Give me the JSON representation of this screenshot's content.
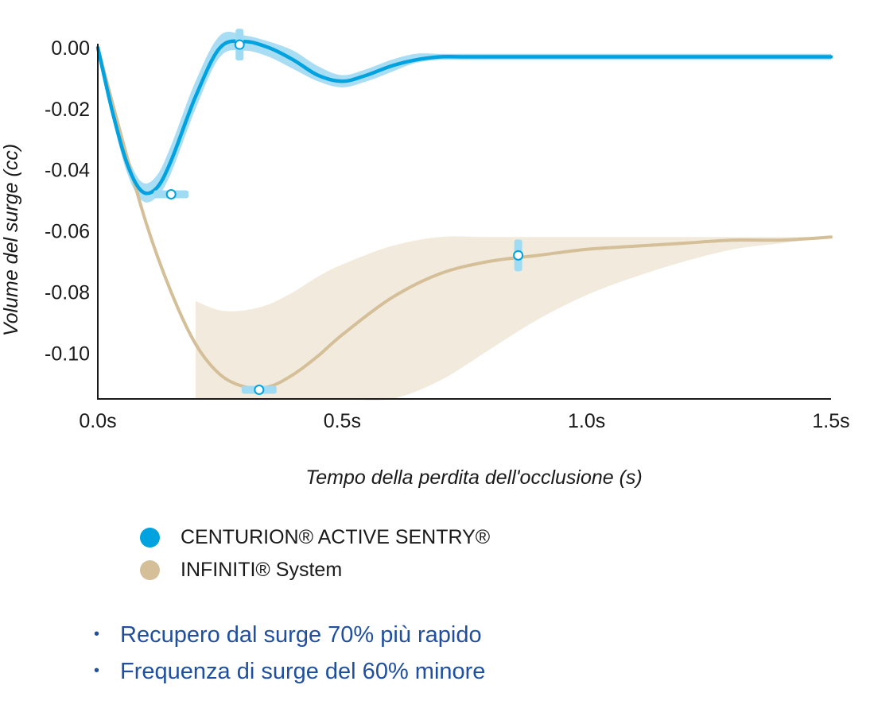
{
  "chart_data": {
    "type": "line",
    "xlabel": "Tempo della perdita dell'occlusione (s)",
    "ylabel": "Volume del surge (cc)",
    "xlim": [
      0,
      1.5
    ],
    "ylim": [
      -0.115,
      0.002
    ],
    "x_ticks": [
      {
        "value": 0.0,
        "label": "0.0s"
      },
      {
        "value": 0.5,
        "label": "0.5s"
      },
      {
        "value": 1.0,
        "label": "1.0s"
      },
      {
        "value": 1.5,
        "label": "1.5s"
      }
    ],
    "y_ticks": [
      {
        "value": 0.0,
        "label": "0.00"
      },
      {
        "value": -0.02,
        "label": "-0.02"
      },
      {
        "value": -0.04,
        "label": "-0.04"
      },
      {
        "value": -0.06,
        "label": "-0.06"
      },
      {
        "value": -0.08,
        "label": "-0.08"
      },
      {
        "value": -0.1,
        "label": "-0.10"
      }
    ],
    "grid": false,
    "legend_position": "bottom",
    "series": [
      {
        "name": "CENTURION® ACTIVE SENTRY®",
        "color": "#00a3e0",
        "band_color": "#a9ddf3",
        "x": [
          0.0,
          0.03,
          0.06,
          0.09,
          0.12,
          0.15,
          0.2,
          0.25,
          0.3,
          0.35,
          0.4,
          0.45,
          0.5,
          0.55,
          0.6,
          0.65,
          0.7,
          0.75,
          0.8,
          1.0,
          1.2,
          1.4,
          1.5
        ],
        "values": [
          0.0,
          -0.021,
          -0.038,
          -0.047,
          -0.046,
          -0.037,
          -0.016,
          0.0,
          0.002,
          0.0,
          -0.004,
          -0.009,
          -0.011,
          -0.009,
          -0.006,
          -0.004,
          -0.003,
          -0.003,
          -0.003,
          -0.003,
          -0.003,
          -0.003,
          -0.003
        ],
        "band_low": [
          0.0,
          -0.023,
          -0.041,
          -0.05,
          -0.049,
          -0.041,
          -0.02,
          -0.003,
          -0.001,
          -0.003,
          -0.007,
          -0.011,
          -0.013,
          -0.011,
          -0.008,
          -0.005,
          -0.004,
          -0.004,
          -0.004,
          -0.004,
          -0.004,
          -0.004,
          -0.004
        ],
        "band_high": [
          0.0,
          -0.019,
          -0.035,
          -0.044,
          -0.042,
          -0.032,
          -0.011,
          0.004,
          0.004,
          0.002,
          -0.001,
          -0.006,
          -0.009,
          -0.007,
          -0.004,
          -0.002,
          -0.002,
          -0.002,
          -0.002,
          -0.002,
          -0.002,
          -0.002,
          -0.002
        ],
        "markers": [
          {
            "x": 0.15,
            "y": -0.048
          },
          {
            "x": 0.29,
            "y": 0.001
          }
        ]
      },
      {
        "name": "INFINITI® System",
        "color": "#d4bf99",
        "band_color": "#f2ebdd",
        "x": [
          0.0,
          0.05,
          0.1,
          0.15,
          0.2,
          0.25,
          0.3,
          0.35,
          0.4,
          0.45,
          0.5,
          0.6,
          0.7,
          0.8,
          0.9,
          1.0,
          1.1,
          1.2,
          1.3,
          1.4,
          1.5
        ],
        "values": [
          0.0,
          -0.03,
          -0.058,
          -0.08,
          -0.097,
          -0.107,
          -0.111,
          -0.111,
          -0.107,
          -0.101,
          -0.094,
          -0.082,
          -0.074,
          -0.07,
          -0.068,
          -0.066,
          -0.065,
          -0.064,
          -0.063,
          -0.063,
          -0.062
        ],
        "band_low": [
          null,
          null,
          null,
          null,
          -0.115,
          -0.115,
          -0.115,
          -0.115,
          -0.115,
          -0.115,
          -0.115,
          -0.115,
          -0.109,
          -0.099,
          -0.089,
          -0.081,
          -0.075,
          -0.07,
          -0.066,
          -0.064,
          -0.062
        ],
        "band_high": [
          null,
          null,
          null,
          null,
          -0.083,
          -0.086,
          -0.086,
          -0.084,
          -0.08,
          -0.075,
          -0.071,
          -0.065,
          -0.062,
          -0.062,
          -0.062,
          -0.062,
          -0.062,
          -0.062,
          -0.062,
          -0.062,
          -0.062
        ],
        "markers": [
          {
            "x": 0.33,
            "y": -0.112
          },
          {
            "x": 0.86,
            "y": -0.068
          }
        ]
      }
    ]
  },
  "legend": [
    {
      "label": "CENTURION® ACTIVE SENTRY®",
      "color": "#00a3e0"
    },
    {
      "label": "INFINITI® System",
      "color": "#d4bf99"
    }
  ],
  "bullets": [
    "Recupero dal surge 70% più rapido",
    "Frequenza di surge del 60% minore"
  ]
}
